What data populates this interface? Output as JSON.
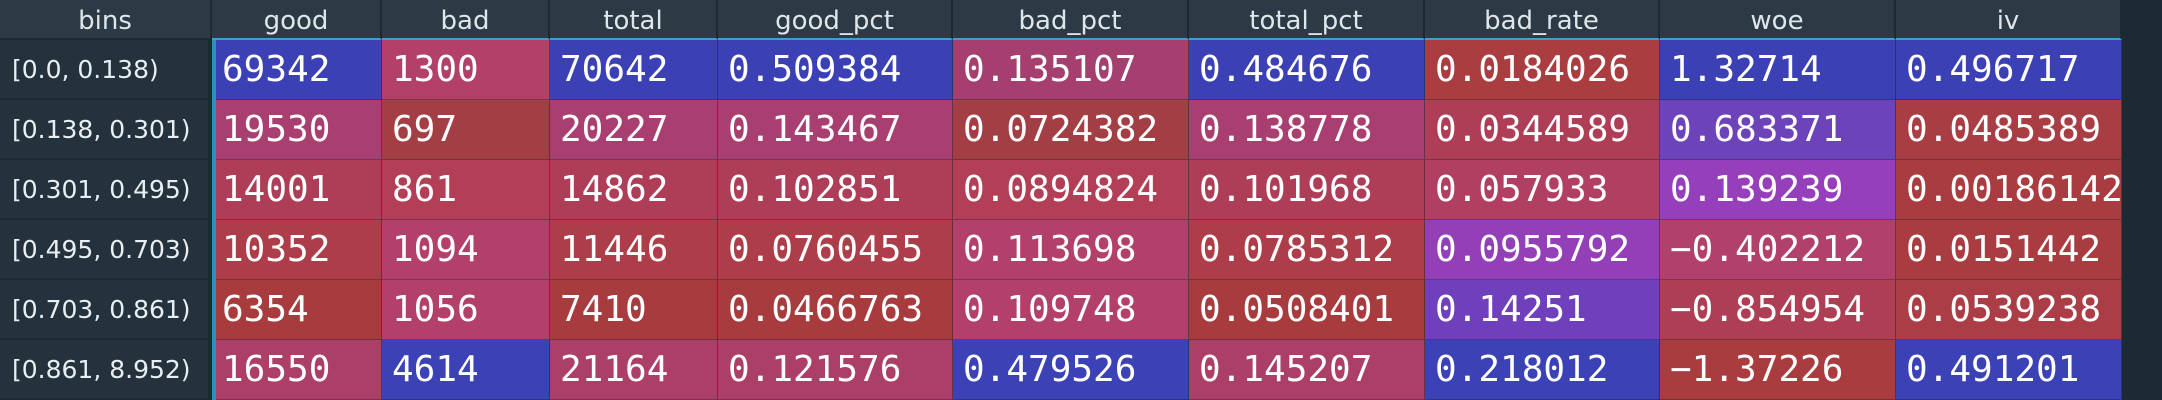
{
  "table": {
    "index_header": "bins",
    "columns": [
      "good",
      "bad",
      "total",
      "good_pct",
      "bad_pct",
      "total_pct",
      "bad_rate",
      "woe",
      "iv"
    ],
    "rows": [
      {
        "bin": "[0.0, 0.138)",
        "cells": [
          "69342",
          "1300",
          "70642",
          "0.509384",
          "0.135107",
          "0.484676",
          "0.0184026",
          "1.32714",
          "0.496717"
        ],
        "colors": [
          "#3b41b5",
          "#b24068",
          "#3b41b5",
          "#3b41b5",
          "#a43f6f",
          "#3b41b5",
          "#a93d40",
          "#3b41b5",
          "#3b41b5"
        ]
      },
      {
        "bin": "[0.138, 0.301)",
        "cells": [
          "19530",
          "697",
          "20227",
          "0.143467",
          "0.0724382",
          "0.138778",
          "0.0344589",
          "0.683371",
          "0.0485389"
        ],
        "colors": [
          "#a83f70",
          "#a33e44",
          "#a83f70",
          "#a83f70",
          "#a33e44",
          "#a83f70",
          "#ad3e56",
          "#6d43ba",
          "#a93d44"
        ]
      },
      {
        "bin": "[0.301, 0.495)",
        "cells": [
          "14001",
          "861",
          "14862",
          "0.102851",
          "0.0894824",
          "0.101968",
          "0.057933",
          "0.139239",
          "0.00186142"
        ],
        "colors": [
          "#ae3e58",
          "#b23f55",
          "#ae3e58",
          "#ae3e58",
          "#b23f55",
          "#ae3e58",
          "#b13f62",
          "#963fba",
          "#a83c40"
        ]
      },
      {
        "bin": "[0.495, 0.703)",
        "cells": [
          "10352",
          "1094",
          "11446",
          "0.0760455",
          "0.113698",
          "0.0785312",
          "0.0955792",
          "−0.402212",
          "0.0151442"
        ],
        "colors": [
          "#ad3d49",
          "#b3406a",
          "#ad3d49",
          "#ad3d49",
          "#b3406a",
          "#ad3d49",
          "#9340b8",
          "#b1416a",
          "#a83c40"
        ]
      },
      {
        "bin": "[0.703, 0.861)",
        "cells": [
          "6354",
          "1056",
          "7410",
          "0.0466763",
          "0.109748",
          "0.0508401",
          "0.14251",
          "−0.854954",
          "0.0539238"
        ],
        "colors": [
          "#a73b3d",
          "#b2406a",
          "#a73b3d",
          "#a73b3d",
          "#b2406a",
          "#a73b3d",
          "#7040bc",
          "#ad3e53",
          "#ab3d47"
        ]
      },
      {
        "bin": "[0.861, 8.952)",
        "cells": [
          "16550",
          "4614",
          "21164",
          "0.121576",
          "0.479526",
          "0.145207",
          "0.218012",
          "−1.37226",
          "0.491201"
        ],
        "colors": [
          "#ac3f67",
          "#3a42b6",
          "#ac3f67",
          "#ac3f67",
          "#3a42b6",
          "#ac3f67",
          "#3a42b6",
          "#a83c3f",
          "#3a42b6"
        ]
      }
    ]
  }
}
